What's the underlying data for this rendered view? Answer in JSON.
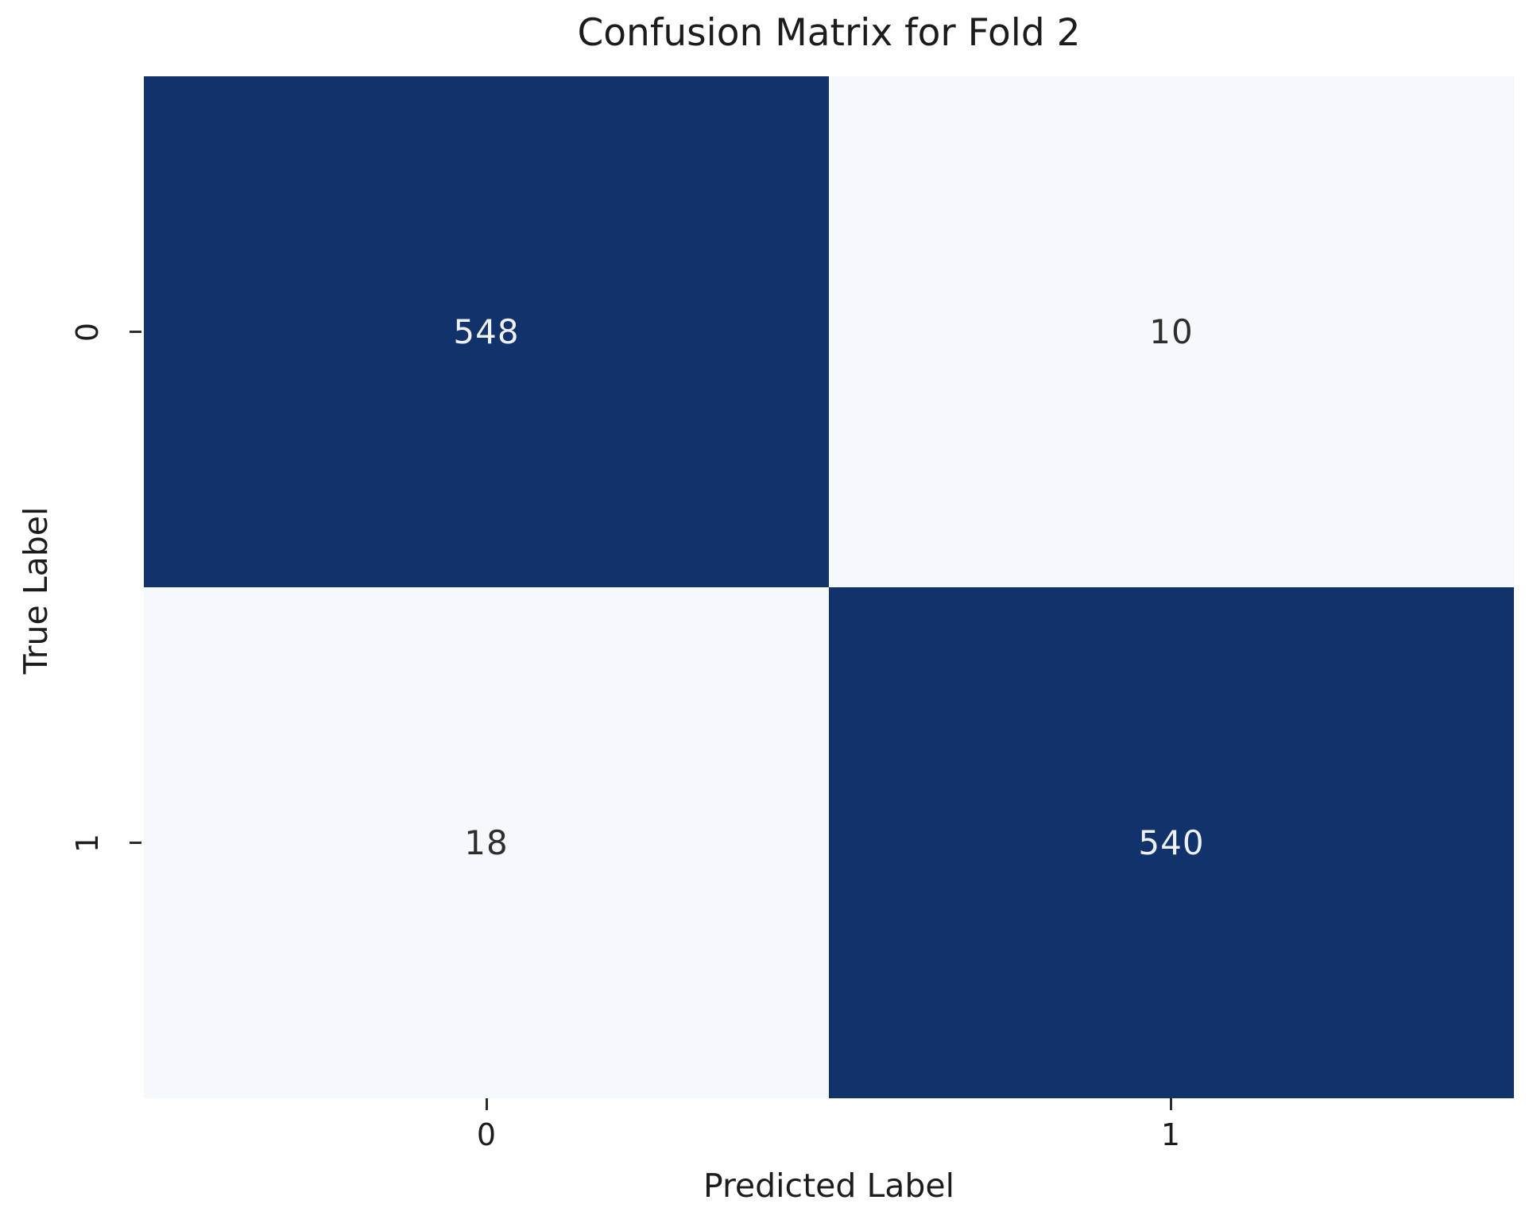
{
  "chart_data": {
    "type": "heatmap",
    "title": "Confusion Matrix for Fold 2",
    "xlabel": "Predicted Label",
    "ylabel": "True Label",
    "x_tick_labels": [
      "0",
      "1"
    ],
    "y_tick_labels": [
      "0",
      "1"
    ],
    "matrix": [
      [
        548,
        10
      ],
      [
        18,
        540
      ]
    ],
    "colormap": "Blues",
    "legend": "none",
    "grid": false,
    "colors": {
      "cell_high": "#12326b",
      "cell_low": "#f6f9fc",
      "value_on_dark": "#eef2f7",
      "value_on_light": "#2e2e2e",
      "axis_text": "#1c1c1c",
      "tick_mark": "#2b2b2b",
      "background": "#ffffff"
    },
    "cell_colors": [
      [
        "#12326b",
        "#f6f9fc"
      ],
      [
        "#f6f9fc",
        "#12326b"
      ]
    ],
    "cell_text_colors": [
      [
        "#eef2f7",
        "#2e2e2e"
      ],
      [
        "#2e2e2e",
        "#eef2f7"
      ]
    ]
  }
}
